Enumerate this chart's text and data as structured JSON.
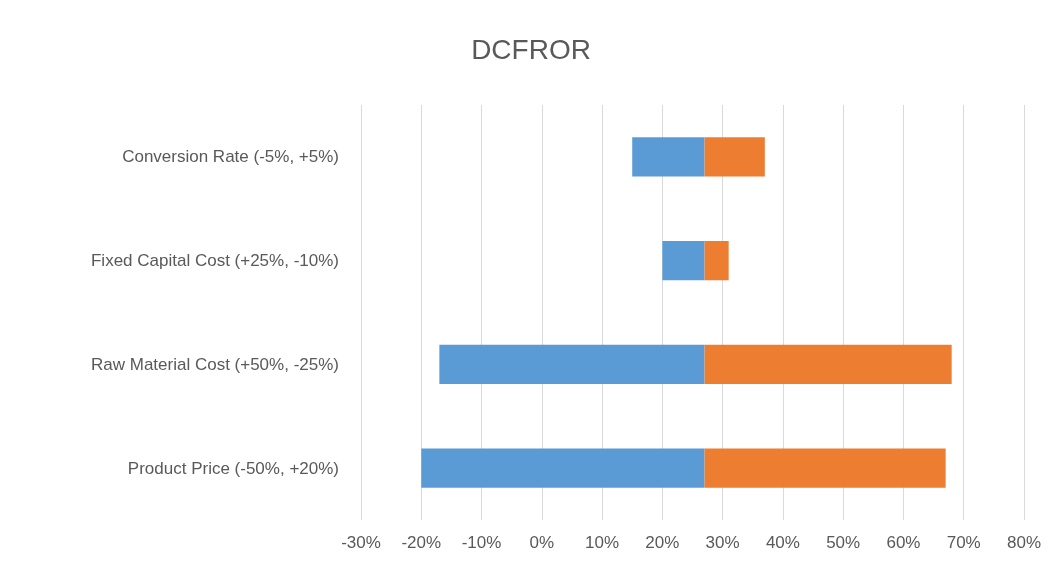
{
  "chart_data": {
    "type": "bar",
    "orientation": "horizontal",
    "title": "DCFROR",
    "categories": [
      "Conversion Rate (-5%, +5%)",
      "Fixed Capital Cost (+25%, -10%)",
      "Raw Material Cost (+50%, -25%)",
      "Product Price (-50%, +20%)"
    ],
    "series": [
      {
        "color": "#5b9bd5",
        "base": [
          15,
          20,
          -17,
          -20
        ],
        "values": [
          12,
          7,
          44,
          47
        ]
      },
      {
        "color": "#ed7d31",
        "base": [
          27,
          27,
          27,
          27
        ],
        "values": [
          10,
          4,
          41,
          40
        ]
      }
    ],
    "xlim": [
      -30,
      80
    ],
    "xticks": [
      {
        "value": -30,
        "label": "-30%"
      },
      {
        "value": -20,
        "label": "-20%"
      },
      {
        "value": -10,
        "label": "-10%"
      },
      {
        "value": 0,
        "label": "0%"
      },
      {
        "value": 10,
        "label": "10%"
      },
      {
        "value": 20,
        "label": "20%"
      },
      {
        "value": 30,
        "label": "30%"
      },
      {
        "value": 40,
        "label": "40%"
      },
      {
        "value": 50,
        "label": "50%"
      },
      {
        "value": 60,
        "label": "60%"
      },
      {
        "value": 70,
        "label": "70%"
      },
      {
        "value": 80,
        "label": "80%"
      }
    ],
    "grid": "x"
  }
}
